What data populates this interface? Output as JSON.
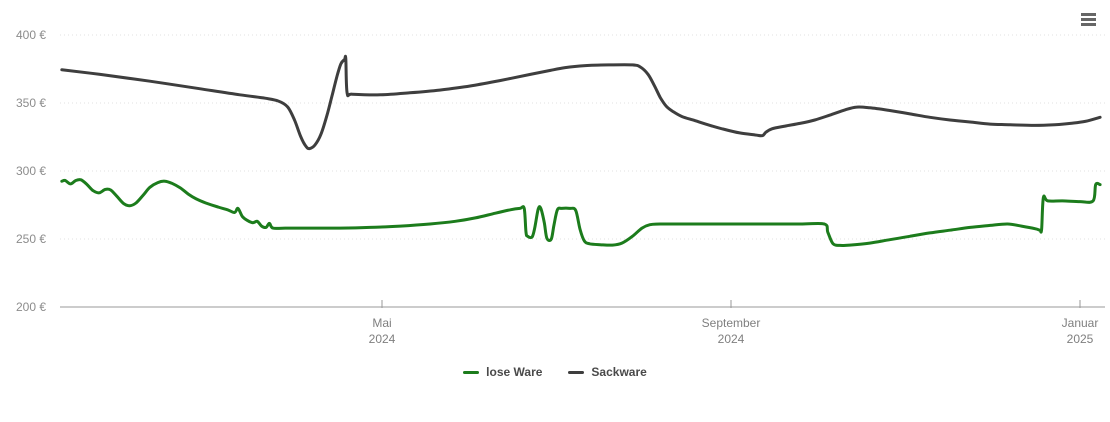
{
  "legend": {
    "items": [
      {
        "label": "lose Ware",
        "color": "#1c7c1c"
      },
      {
        "label": "Sackware",
        "color": "#3e3e3e"
      }
    ]
  },
  "menu": {
    "icon": "hamburger-menu"
  },
  "chart_data": {
    "type": "line",
    "title": "",
    "xlabel": "",
    "ylabel": "",
    "x_scale": "months since 2024-01-01 (0 = 1 Jan 2024, 4 = Mai 2024, 8 = September 2024, 12 = Januar 2025)",
    "x_range": [
      0.33,
      12.23
    ],
    "ylim": [
      200,
      400
    ],
    "grid": "horizontal dotted",
    "legend_position": "bottom-center",
    "y_ticks": [
      {
        "value": 200,
        "label": "200 €"
      },
      {
        "value": 250,
        "label": "250 €"
      },
      {
        "value": 300,
        "label": "300 €"
      },
      {
        "value": 350,
        "label": "350 €"
      },
      {
        "value": 400,
        "label": "400 €"
      }
    ],
    "x_ticks": [
      {
        "pos": 4,
        "line1": "Mai",
        "line2": "2024"
      },
      {
        "pos": 8,
        "line1": "September",
        "line2": "2024"
      },
      {
        "pos": 12,
        "line1": "Januar",
        "line2": "2025"
      }
    ],
    "series": [
      {
        "name": "Sackware",
        "color": "#3e3e3e",
        "points": [
          [
            0.33,
            374.5
          ],
          [
            0.77,
            371
          ],
          [
            1.34,
            366
          ],
          [
            1.91,
            360.5
          ],
          [
            2.37,
            356
          ],
          [
            2.66,
            353.5
          ],
          [
            2.81,
            351.5
          ],
          [
            2.92,
            347
          ],
          [
            3.0,
            337
          ],
          [
            3.07,
            325
          ],
          [
            3.13,
            318
          ],
          [
            3.17,
            316.5
          ],
          [
            3.23,
            319
          ],
          [
            3.3,
            327
          ],
          [
            3.37,
            341
          ],
          [
            3.43,
            356
          ],
          [
            3.49,
            371
          ],
          [
            3.53,
            379
          ],
          [
            3.57,
            382
          ],
          [
            3.585,
            382.5
          ],
          [
            3.6,
            357.5
          ],
          [
            3.66,
            356.5
          ],
          [
            3.98,
            356
          ],
          [
            4.32,
            357.5
          ],
          [
            4.66,
            359.5
          ],
          [
            5.01,
            362.5
          ],
          [
            5.35,
            366.5
          ],
          [
            5.7,
            371
          ],
          [
            5.93,
            374
          ],
          [
            6.1,
            376
          ],
          [
            6.33,
            377.5
          ],
          [
            6.61,
            378
          ],
          [
            6.87,
            378
          ],
          [
            6.96,
            376.5
          ],
          [
            7.05,
            371
          ],
          [
            7.12,
            363
          ],
          [
            7.19,
            354
          ],
          [
            7.26,
            347.5
          ],
          [
            7.34,
            343.5
          ],
          [
            7.44,
            340
          ],
          [
            7.59,
            337
          ],
          [
            7.76,
            333.5
          ],
          [
            7.93,
            330.5
          ],
          [
            8.1,
            328
          ],
          [
            8.28,
            326.5
          ],
          [
            8.36,
            326
          ],
          [
            8.4,
            328.5
          ],
          [
            8.47,
            331
          ],
          [
            8.62,
            333
          ],
          [
            8.79,
            335
          ],
          [
            8.96,
            337.5
          ],
          [
            9.13,
            341
          ],
          [
            9.31,
            345
          ],
          [
            9.44,
            347
          ],
          [
            9.59,
            346.5
          ],
          [
            9.82,
            344.5
          ],
          [
            10.05,
            342
          ],
          [
            10.28,
            339.5
          ],
          [
            10.51,
            337.5
          ],
          [
            10.74,
            336
          ],
          [
            10.97,
            334.5
          ],
          [
            11.2,
            334
          ],
          [
            11.48,
            333.5
          ],
          [
            11.71,
            334
          ],
          [
            11.89,
            335
          ],
          [
            12.06,
            336.5
          ],
          [
            12.23,
            339.5
          ]
        ]
      },
      {
        "name": "lose Ware",
        "color": "#1c7c1c",
        "points": [
          [
            0.33,
            292.5
          ],
          [
            0.37,
            293
          ],
          [
            0.43,
            290.5
          ],
          [
            0.49,
            293
          ],
          [
            0.55,
            293.5
          ],
          [
            0.62,
            290
          ],
          [
            0.69,
            285.5
          ],
          [
            0.76,
            284
          ],
          [
            0.83,
            286.5
          ],
          [
            0.89,
            286
          ],
          [
            0.96,
            281.5
          ],
          [
            1.04,
            276
          ],
          [
            1.11,
            274.5
          ],
          [
            1.18,
            276.5
          ],
          [
            1.26,
            282
          ],
          [
            1.34,
            288
          ],
          [
            1.43,
            291.5
          ],
          [
            1.51,
            292.5
          ],
          [
            1.59,
            291
          ],
          [
            1.69,
            287.5
          ],
          [
            1.78,
            283
          ],
          [
            1.87,
            279.5
          ],
          [
            1.98,
            276.5
          ],
          [
            2.12,
            273.5
          ],
          [
            2.23,
            271.5
          ],
          [
            2.31,
            269.5
          ],
          [
            2.35,
            272.5
          ],
          [
            2.4,
            266.5
          ],
          [
            2.46,
            263.5
          ],
          [
            2.52,
            262
          ],
          [
            2.57,
            263
          ],
          [
            2.62,
            259.5
          ],
          [
            2.67,
            258.5
          ],
          [
            2.71,
            261.5
          ],
          [
            2.75,
            258
          ],
          [
            2.89,
            258
          ],
          [
            3.2,
            258
          ],
          [
            3.52,
            258
          ],
          [
            3.86,
            258.5
          ],
          [
            4.21,
            259.5
          ],
          [
            4.55,
            261
          ],
          [
            4.84,
            263
          ],
          [
            5.07,
            265.5
          ],
          [
            5.3,
            269
          ],
          [
            5.47,
            271.5
          ],
          [
            5.58,
            272.5
          ],
          [
            5.63,
            272.5
          ],
          [
            5.65,
            255
          ],
          [
            5.67,
            252
          ],
          [
            5.72,
            251.5
          ],
          [
            5.75,
            258
          ],
          [
            5.79,
            272
          ],
          [
            5.82,
            272.5
          ],
          [
            5.86,
            262
          ],
          [
            5.89,
            250.5
          ],
          [
            5.94,
            250
          ],
          [
            5.97,
            260
          ],
          [
            6.01,
            271.5
          ],
          [
            6.06,
            272.5
          ],
          [
            6.15,
            272.5
          ],
          [
            6.22,
            271
          ],
          [
            6.27,
            257
          ],
          [
            6.32,
            248.5
          ],
          [
            6.38,
            246.5
          ],
          [
            6.5,
            245.8
          ],
          [
            6.64,
            245.5
          ],
          [
            6.75,
            247
          ],
          [
            6.87,
            252
          ],
          [
            6.98,
            258
          ],
          [
            7.07,
            260.5
          ],
          [
            7.19,
            261
          ],
          [
            7.64,
            261
          ],
          [
            8.22,
            261
          ],
          [
            8.79,
            261
          ],
          [
            9.07,
            261
          ],
          [
            9.11,
            255
          ],
          [
            9.17,
            246.5
          ],
          [
            9.25,
            245.3
          ],
          [
            9.36,
            245.5
          ],
          [
            9.59,
            247
          ],
          [
            9.82,
            249.5
          ],
          [
            10.05,
            252
          ],
          [
            10.28,
            254.5
          ],
          [
            10.51,
            256.5
          ],
          [
            10.74,
            258.5
          ],
          [
            10.97,
            260
          ],
          [
            11.17,
            261
          ],
          [
            11.33,
            259.5
          ],
          [
            11.49,
            257.5
          ],
          [
            11.54,
            256.5
          ],
          [
            11.56,
            257
          ],
          [
            11.58,
            280.5
          ],
          [
            11.63,
            278
          ],
          [
            11.8,
            278
          ],
          [
            12.0,
            277.5
          ],
          [
            12.15,
            278
          ],
          [
            12.18,
            290
          ],
          [
            12.23,
            290
          ]
        ]
      }
    ]
  }
}
